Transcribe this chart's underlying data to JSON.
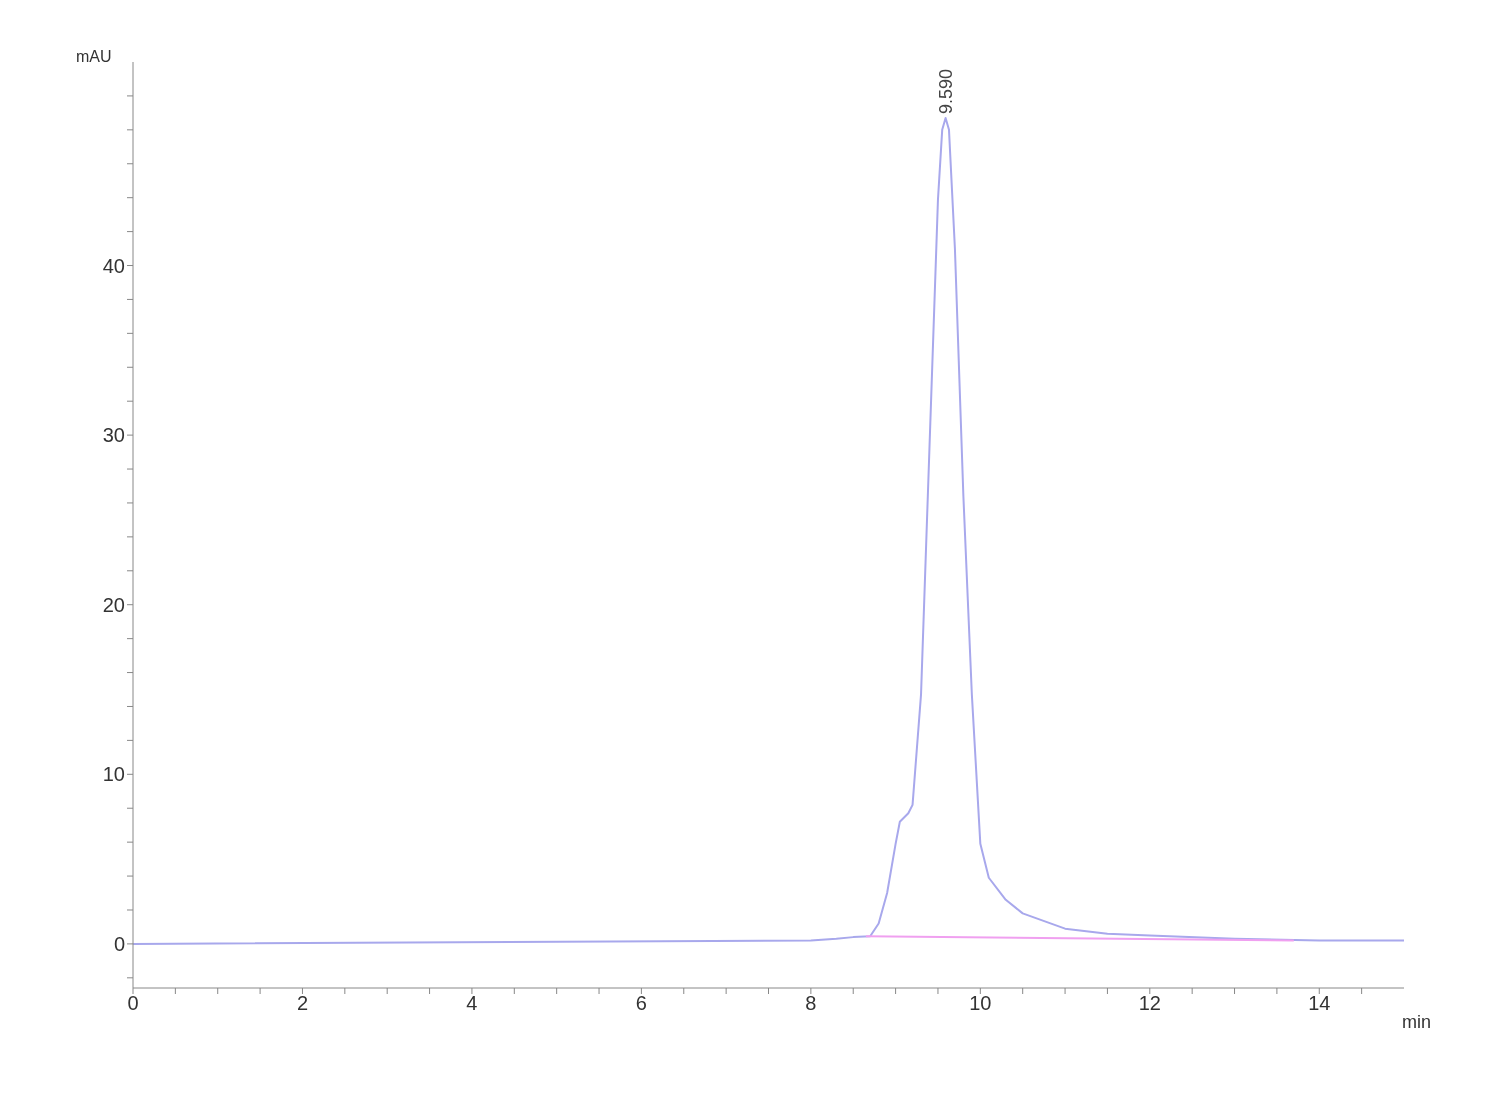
{
  "chart_data": {
    "type": "line",
    "xlabel": "min",
    "ylabel": "mAU",
    "xlim": [
      0,
      15
    ],
    "ylim": [
      -2.6,
      52
    ],
    "xticks": [
      0,
      {
        "value": 0.5,
        "label": null
      },
      2,
      {
        "value": 1,
        "label": null
      },
      {
        "value": 1.5,
        "label": null
      },
      {
        "value": 2.5,
        "label": null
      },
      {
        "value": 3,
        "label": null
      },
      {
        "value": 3.5,
        "label": null
      },
      4,
      {
        "value": 4.5,
        "label": null
      },
      {
        "value": 5,
        "label": null
      },
      {
        "value": 5.5,
        "label": null
      },
      6,
      {
        "value": 6.5,
        "label": null
      },
      {
        "value": 7,
        "label": null
      },
      {
        "value": 7.5,
        "label": null
      },
      8,
      {
        "value": 8.5,
        "label": null
      },
      {
        "value": 9,
        "label": null
      },
      {
        "value": 9.5,
        "label": null
      },
      10,
      {
        "value": 10.5,
        "label": null
      },
      {
        "value": 11,
        "label": null
      },
      {
        "value": 11.5,
        "label": null
      },
      12,
      {
        "value": 12.5,
        "label": null
      },
      {
        "value": 13,
        "label": null
      },
      {
        "value": 13.5,
        "label": null
      },
      14,
      {
        "value": 14.5,
        "label": null
      }
    ],
    "yticks": [
      {
        "value": -2,
        "label": null
      },
      0,
      {
        "value": 2,
        "label": null
      },
      {
        "value": 4,
        "label": null
      },
      {
        "value": 6,
        "label": null
      },
      {
        "value": 8,
        "label": null
      },
      10,
      {
        "value": 12,
        "label": null
      },
      {
        "value": 14,
        "label": null
      },
      {
        "value": 16,
        "label": null
      },
      {
        "value": 18,
        "label": null
      },
      20,
      {
        "value": 22,
        "label": null
      },
      {
        "value": 24,
        "label": null
      },
      {
        "value": 26,
        "label": null
      },
      {
        "value": 28,
        "label": null
      },
      30,
      {
        "value": 32,
        "label": null
      },
      {
        "value": 34,
        "label": null
      },
      {
        "value": 36,
        "label": null
      },
      {
        "value": 38,
        "label": null
      },
      40,
      {
        "value": 42,
        "label": null
      },
      {
        "value": 44,
        "label": null
      },
      {
        "value": 46,
        "label": null
      },
      {
        "value": 48,
        "label": null
      },
      {
        "value": 50,
        "label": null
      }
    ],
    "grid": false,
    "marker": "none",
    "line_style": "solid",
    "annotations": [
      {
        "text": "9.590",
        "x": 9.59,
        "y": 48.7
      }
    ],
    "series": [
      {
        "color": "#a8a8ec",
        "x": [
          0,
          8,
          8.3,
          8.5,
          8.7,
          8.8,
          8.9,
          9,
          9.05,
          9.15,
          9.2,
          9.3,
          9.4,
          9.5,
          9.55,
          9.59,
          9.63,
          9.7,
          9.8,
          9.9,
          10,
          10.1,
          10.3,
          10.5,
          11,
          11.5,
          12,
          13,
          14,
          15
        ],
        "values": [
          0,
          0.2,
          0.3,
          0.4,
          0.45,
          1.2,
          3,
          5.9,
          7.2,
          7.7,
          8.2,
          14.7,
          29.3,
          43.9,
          48,
          48.7,
          48,
          41,
          26.4,
          14.7,
          5.9,
          3.9,
          2.6,
          1.8,
          0.9,
          0.6,
          0.5,
          0.3,
          0.2,
          0.2
        ]
      },
      {
        "color": "#f0a0f0",
        "x": [
          8.65,
          13.7
        ],
        "values": [
          0.45,
          0.2
        ]
      }
    ]
  }
}
